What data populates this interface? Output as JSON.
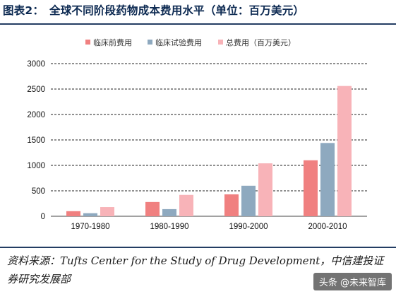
{
  "header": {
    "title": "图表2：　全球不同阶段药物成本费用水平（单位：百万美元）"
  },
  "chart_data": {
    "type": "bar",
    "categories": [
      "1970-1980",
      "1980-1990",
      "1990-2000",
      "2000-2010"
    ],
    "series": [
      {
        "name": "临床前费用",
        "color": "#f08080",
        "values": [
          100,
          280,
          430,
          1100
        ]
      },
      {
        "name": "临床试验费用",
        "color": "#8ea9bf",
        "values": [
          60,
          140,
          600,
          1440
        ]
      },
      {
        "name": "总费用（百万美元）",
        "color": "#f8b3b8",
        "values": [
          180,
          420,
          1040,
          2560
        ]
      }
    ],
    "yticks": [
      "0",
      "500",
      "1000",
      "1500",
      "2000",
      "2500",
      "3000"
    ],
    "ylim": [
      0,
      3000
    ],
    "grid": true,
    "legend_position": "top"
  },
  "footer": {
    "source": "资料来源：Tufts Center for the Study of Drug Development，中信建投证券研究发展部",
    "watermark": "头条 @未来智库"
  }
}
